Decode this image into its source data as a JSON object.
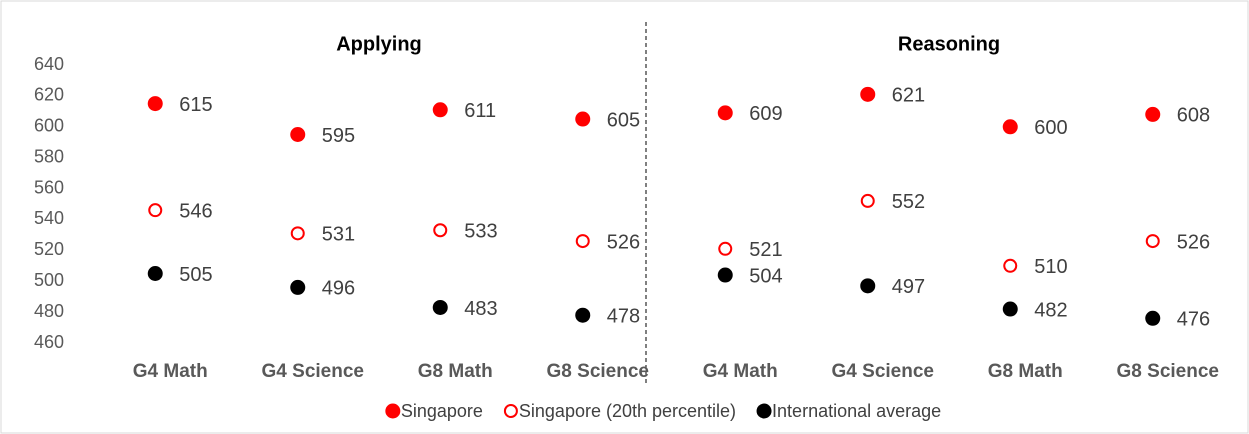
{
  "chart_data": {
    "type": "dot",
    "groups": [
      "Applying",
      "Reasoning"
    ],
    "categories": [
      "G4 Math",
      "G4 Science",
      "G8 Math",
      "G8 Science",
      "G4 Math",
      "G4 Science",
      "G8 Math",
      "G8 Science"
    ],
    "series": [
      {
        "name": "Singapore",
        "color": "#ff0000",
        "marker": "circle",
        "values": [
          615,
          595,
          611,
          605,
          609,
          621,
          600,
          608
        ]
      },
      {
        "name": "Singapore (20th percentile)",
        "color": "#ff0000",
        "marker": "open-circle",
        "values": [
          546,
          531,
          533,
          526,
          521,
          552,
          510,
          526
        ]
      },
      {
        "name": "International average",
        "color": "#000000",
        "marker": "circle",
        "values": [
          505,
          496,
          483,
          478,
          504,
          497,
          482,
          476
        ]
      }
    ],
    "ylim": [
      460,
      640
    ],
    "yticks": [
      460,
      480,
      500,
      520,
      540,
      560,
      580,
      600,
      620,
      640
    ],
    "grid": false,
    "legend": "bottom"
  }
}
